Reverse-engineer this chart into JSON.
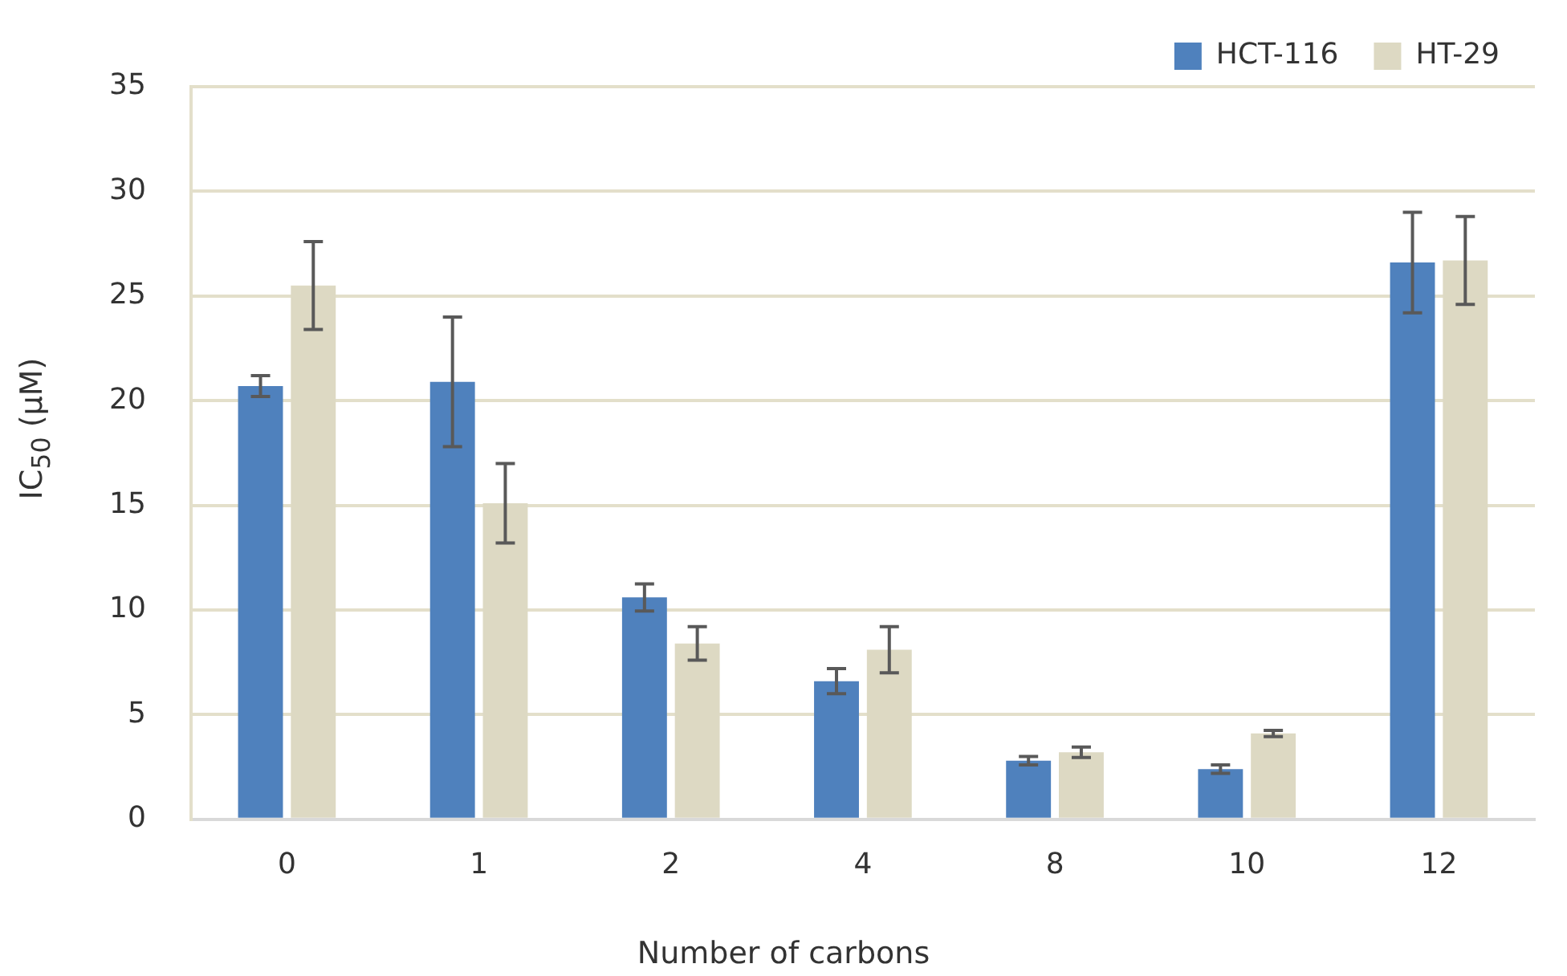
{
  "chart_data": {
    "type": "bar",
    "xlabel": "Number of carbons",
    "ylabel": "IC$_{50}$ (μM)",
    "categories": [
      "0",
      "1",
      "2",
      "4",
      "8",
      "10",
      "12"
    ],
    "series": [
      {
        "name": "HCT-116",
        "color": "#4f81bd",
        "values": [
          20.7,
          20.9,
          10.6,
          6.6,
          2.8,
          2.4,
          26.6
        ],
        "errors": [
          0.5,
          3.1,
          0.65,
          0.6,
          0.2,
          0.2,
          2.4
        ]
      },
      {
        "name": "HT-29",
        "color": "#ddd9c3",
        "values": [
          25.5,
          15.1,
          8.4,
          8.1,
          3.2,
          4.1,
          26.7
        ],
        "errors": [
          2.1,
          1.9,
          0.8,
          1.1,
          0.25,
          0.15,
          2.1
        ]
      }
    ],
    "ylim": [
      0,
      35
    ],
    "yticks": [
      0,
      5,
      10,
      15,
      20,
      25,
      30,
      35
    ],
    "grid": "y",
    "legend": "top right"
  }
}
